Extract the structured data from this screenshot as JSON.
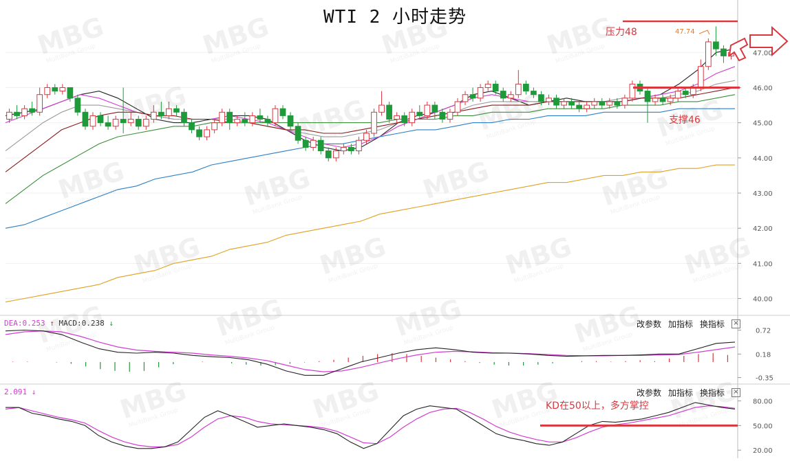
{
  "title": "WTI 2 小时走势",
  "annotations": {
    "resistance": "压力48",
    "support": "支撑46",
    "kd_note": "KD在50以上，多方掌控",
    "peak": "47.74"
  },
  "watermark": {
    "logo": "MBG",
    "sub": "MultiBank Group"
  },
  "macd_header": {
    "dea": "DEA:0.253",
    "macd": "MACD:0.238",
    "dea_arrow": "↑",
    "macd_arrow": "↓"
  },
  "kd_header": {
    "value": "2.091",
    "arrow": "↓"
  },
  "toolbar": {
    "modify": "改参数",
    "add": "加指标",
    "switch": "换指标",
    "close": "×"
  },
  "colors": {
    "up": "#d9363e",
    "down": "#1f9a3a",
    "annotation": "#d9363e",
    "ma_black": "#222222",
    "ma_magenta": "#d23cd2",
    "ma_grey": "#9a9a9a",
    "ma_darkred": "#8b1a1a",
    "ma_green": "#3a8f3a",
    "ma_blue": "#2a7fc8",
    "ma_orange": "#e0a020"
  },
  "chart_data": [
    {
      "type": "candlestick",
      "title": "WTI 2 小时走势",
      "ylim": [
        39.6,
        48.1
      ],
      "y_ticks": [
        "40.00",
        "41.00",
        "42.00",
        "43.00",
        "44.00",
        "45.00",
        "46.00",
        "47.00"
      ],
      "horizontal_levels": [
        {
          "label": "压力48",
          "value": 48.0
        },
        {
          "label": "支撑46",
          "value": 46.0
        }
      ],
      "peak_label": {
        "text": "47.74",
        "value": 47.74
      },
      "candles": [
        [
          45.1,
          45.3,
          45.0,
          45.4
        ],
        [
          45.3,
          45.2,
          45.1,
          45.5
        ],
        [
          45.2,
          45.4,
          45.1,
          45.5
        ],
        [
          45.4,
          45.3,
          45.2,
          45.6
        ],
        [
          45.3,
          45.8,
          45.2,
          46.0
        ],
        [
          45.8,
          46.0,
          45.7,
          46.1
        ],
        [
          46.0,
          45.9,
          45.8,
          46.1
        ],
        [
          45.9,
          46.0,
          45.8,
          46.1
        ],
        [
          46.0,
          45.7,
          45.6,
          46.0
        ],
        [
          45.7,
          45.3,
          45.2,
          45.8
        ],
        [
          45.3,
          44.9,
          44.8,
          45.4
        ],
        [
          44.9,
          45.2,
          44.8,
          45.3
        ],
        [
          45.2,
          45.0,
          44.9,
          45.3
        ],
        [
          45.0,
          44.9,
          44.8,
          45.2
        ],
        [
          44.9,
          45.1,
          44.8,
          45.2
        ],
        [
          45.1,
          45.0,
          44.7,
          46.0
        ],
        [
          45.0,
          45.1,
          44.9,
          45.3
        ],
        [
          45.1,
          44.9,
          44.8,
          45.2
        ],
        [
          44.9,
          45.1,
          44.8,
          45.2
        ],
        [
          45.1,
          45.3,
          45.0,
          45.5
        ],
        [
          45.3,
          45.2,
          45.1,
          45.6
        ],
        [
          45.2,
          45.4,
          45.1,
          45.6
        ],
        [
          45.4,
          45.3,
          45.2,
          45.5
        ],
        [
          45.3,
          45.0,
          44.9,
          45.4
        ],
        [
          45.0,
          44.8,
          44.7,
          45.1
        ],
        [
          44.8,
          44.6,
          44.5,
          44.9
        ],
        [
          44.6,
          44.8,
          44.5,
          44.9
        ],
        [
          44.8,
          45.0,
          44.7,
          45.1
        ],
        [
          45.0,
          45.3,
          44.9,
          45.4
        ],
        [
          45.3,
          45.0,
          44.8,
          45.4
        ],
        [
          45.0,
          45.1,
          44.9,
          45.2
        ],
        [
          45.1,
          45.0,
          44.9,
          45.3
        ],
        [
          45.0,
          45.2,
          44.9,
          45.3
        ],
        [
          45.2,
          45.1,
          45.0,
          45.4
        ],
        [
          45.1,
          45.0,
          44.9,
          45.2
        ],
        [
          45.0,
          45.4,
          44.9,
          45.5
        ],
        [
          45.4,
          45.2,
          45.1,
          45.5
        ],
        [
          45.2,
          44.9,
          44.8,
          45.3
        ],
        [
          44.9,
          44.5,
          44.4,
          45.0
        ],
        [
          44.5,
          44.3,
          44.2,
          44.6
        ],
        [
          44.3,
          44.5,
          44.2,
          44.6
        ],
        [
          44.5,
          44.2,
          44.1,
          44.6
        ],
        [
          44.2,
          44.0,
          43.9,
          44.3
        ],
        [
          44.0,
          44.2,
          43.9,
          44.3
        ],
        [
          44.2,
          44.3,
          44.1,
          44.4
        ],
        [
          44.3,
          44.2,
          44.1,
          44.4
        ],
        [
          44.2,
          44.5,
          44.1,
          44.6
        ],
        [
          44.5,
          44.7,
          44.4,
          44.8
        ],
        [
          44.7,
          45.3,
          44.6,
          45.4
        ],
        [
          45.3,
          45.5,
          45.2,
          45.9
        ],
        [
          45.5,
          45.1,
          45.0,
          45.6
        ],
        [
          45.1,
          45.2,
          45.0,
          45.3
        ],
        [
          45.2,
          45.0,
          44.9,
          45.3
        ],
        [
          45.0,
          45.3,
          44.9,
          45.4
        ],
        [
          45.3,
          45.2,
          45.1,
          45.5
        ],
        [
          45.2,
          45.5,
          45.1,
          45.6
        ],
        [
          45.5,
          45.3,
          45.1,
          45.6
        ],
        [
          45.3,
          45.1,
          45.0,
          45.4
        ],
        [
          45.1,
          45.3,
          45.0,
          45.4
        ],
        [
          45.3,
          45.6,
          45.2,
          45.7
        ],
        [
          45.6,
          45.8,
          45.5,
          45.9
        ],
        [
          45.8,
          45.7,
          45.6,
          46.0
        ],
        [
          45.7,
          46.0,
          45.6,
          46.1
        ],
        [
          46.0,
          46.1,
          45.9,
          46.2
        ],
        [
          46.1,
          45.9,
          45.8,
          46.2
        ],
        [
          45.9,
          45.7,
          45.6,
          46.0
        ],
        [
          45.7,
          45.8,
          45.6,
          45.9
        ],
        [
          45.8,
          46.1,
          45.7,
          46.5
        ],
        [
          46.1,
          45.9,
          45.8,
          46.2
        ],
        [
          45.9,
          45.8,
          45.7,
          46.0
        ],
        [
          45.8,
          45.6,
          45.5,
          45.9
        ],
        [
          45.6,
          45.7,
          45.5,
          45.8
        ],
        [
          45.7,
          45.5,
          45.4,
          45.8
        ],
        [
          45.5,
          45.6,
          45.4,
          45.7
        ],
        [
          45.6,
          45.5,
          45.4,
          45.7
        ],
        [
          45.5,
          45.4,
          45.3,
          45.6
        ],
        [
          45.4,
          45.5,
          45.3,
          45.6
        ],
        [
          45.5,
          45.6,
          45.4,
          45.7
        ],
        [
          45.6,
          45.5,
          45.4,
          45.7
        ],
        [
          45.5,
          45.6,
          45.4,
          45.7
        ],
        [
          45.6,
          45.5,
          45.4,
          45.7
        ],
        [
          45.5,
          45.7,
          45.4,
          45.8
        ],
        [
          45.7,
          46.1,
          45.6,
          46.2
        ],
        [
          46.1,
          45.9,
          45.8,
          46.2
        ],
        [
          45.9,
          45.6,
          45.0,
          46.0
        ],
        [
          45.6,
          45.7,
          45.5,
          45.8
        ],
        [
          45.7,
          45.6,
          45.5,
          45.8
        ],
        [
          45.6,
          45.7,
          45.5,
          45.8
        ],
        [
          45.7,
          45.9,
          45.6,
          46.0
        ],
        [
          45.9,
          45.8,
          45.7,
          46.0
        ],
        [
          45.8,
          46.0,
          45.7,
          46.1
        ],
        [
          46.0,
          46.6,
          45.9,
          46.8
        ],
        [
          46.6,
          47.3,
          46.5,
          47.4
        ],
        [
          47.3,
          47.1,
          46.9,
          47.74
        ],
        [
          47.1,
          46.9,
          46.7,
          47.2
        ],
        [
          46.9,
          47.0,
          46.8,
          47.1
        ]
      ],
      "moving_averages": [
        {
          "color": "#222222",
          "values": [
            45.2,
            45.3,
            45.4,
            45.6,
            45.8,
            45.9,
            45.7,
            45.4,
            45.1,
            45.0,
            45.0,
            45.1,
            45.2,
            45.2,
            45.1,
            44.8,
            44.5,
            44.3,
            44.2,
            44.3,
            44.6,
            45.0,
            45.2,
            45.3,
            45.5,
            45.8,
            45.9,
            45.7,
            45.5,
            45.6,
            45.7,
            45.6,
            45.6,
            45.6,
            45.7,
            45.8,
            46.1,
            46.5,
            47.0,
            47.1
          ]
        },
        {
          "color": "#d23cd2",
          "values": [
            45.0,
            45.2,
            45.4,
            45.6,
            45.8,
            45.7,
            45.5,
            45.3,
            45.2,
            45.1,
            45.1,
            45.1,
            45.2,
            45.1,
            45.0,
            44.8,
            44.6,
            44.4,
            44.3,
            44.4,
            44.6,
            44.9,
            45.1,
            45.3,
            45.5,
            45.7,
            45.8,
            45.7,
            45.6,
            45.6,
            45.6,
            45.6,
            45.6,
            45.6,
            45.7,
            45.8,
            45.9,
            46.1,
            46.4,
            46.6
          ]
        },
        {
          "color": "#9a9a9a",
          "values": [
            44.2,
            44.6,
            45.0,
            45.3,
            45.5,
            45.5,
            45.4,
            45.3,
            45.2,
            45.1,
            45.1,
            45.1,
            45.1,
            45.0,
            44.9,
            44.8,
            44.7,
            44.6,
            44.6,
            44.7,
            44.8,
            45.0,
            45.1,
            45.2,
            45.3,
            45.5,
            45.6,
            45.6,
            45.6,
            45.6,
            45.6,
            45.6,
            45.6,
            45.7,
            45.7,
            45.7,
            45.8,
            45.9,
            46.1,
            46.2
          ]
        },
        {
          "color": "#8b1a1a",
          "values": [
            43.6,
            44.0,
            44.4,
            44.8,
            45.0,
            45.2,
            45.3,
            45.3,
            45.2,
            45.2,
            45.1,
            45.1,
            45.0,
            45.0,
            44.9,
            44.8,
            44.8,
            44.7,
            44.7,
            44.8,
            44.9,
            45.0,
            45.1,
            45.2,
            45.3,
            45.4,
            45.5,
            45.5,
            45.5,
            45.6,
            45.6,
            45.6,
            45.6,
            45.6,
            45.7,
            45.7,
            45.7,
            45.8,
            45.9,
            46.0
          ]
        },
        {
          "color": "#3a8f3a",
          "values": [
            42.7,
            43.1,
            43.5,
            43.8,
            44.1,
            44.4,
            44.6,
            44.7,
            44.8,
            44.9,
            44.9,
            45.0,
            45.0,
            45.0,
            45.0,
            45.0,
            45.0,
            45.0,
            45.0,
            45.0,
            45.0,
            45.1,
            45.1,
            45.1,
            45.2,
            45.2,
            45.3,
            45.3,
            45.3,
            45.4,
            45.4,
            45.4,
            45.4,
            45.5,
            45.5,
            45.5,
            45.6,
            45.6,
            45.7,
            45.8
          ]
        },
        {
          "color": "#2a7fc8",
          "values": [
            42.0,
            42.1,
            42.3,
            42.5,
            42.7,
            42.9,
            43.1,
            43.2,
            43.4,
            43.5,
            43.6,
            43.8,
            43.9,
            44.0,
            44.1,
            44.2,
            44.3,
            44.4,
            44.4,
            44.5,
            44.6,
            44.7,
            44.8,
            44.8,
            44.9,
            45.0,
            45.0,
            45.1,
            45.1,
            45.2,
            45.2,
            45.2,
            45.3,
            45.3,
            45.3,
            45.3,
            45.4,
            45.4,
            45.4,
            45.4
          ]
        },
        {
          "color": "#e0a020",
          "values": [
            39.9,
            40.0,
            40.1,
            40.2,
            40.3,
            40.4,
            40.6,
            40.7,
            40.8,
            41.0,
            41.1,
            41.2,
            41.4,
            41.5,
            41.6,
            41.8,
            41.9,
            42.0,
            42.1,
            42.2,
            42.4,
            42.5,
            42.6,
            42.7,
            42.8,
            42.9,
            43.0,
            43.1,
            43.2,
            43.3,
            43.3,
            43.4,
            43.5,
            43.5,
            43.6,
            43.6,
            43.7,
            43.7,
            43.8,
            43.8
          ]
        }
      ]
    },
    {
      "type": "macd",
      "ylim": [
        -0.45,
        0.82
      ],
      "y_ticks": [
        "0.72",
        "0.18",
        "-0.35"
      ],
      "dif": [
        0.7,
        0.72,
        0.7,
        0.62,
        0.45,
        0.3,
        0.22,
        0.2,
        0.22,
        0.2,
        0.15,
        0.12,
        0.1,
        0.05,
        -0.05,
        -0.2,
        -0.3,
        -0.3,
        -0.15,
        0.0,
        0.1,
        0.2,
        0.28,
        0.32,
        0.28,
        0.22,
        0.2,
        0.2,
        0.18,
        0.15,
        0.13,
        0.14,
        0.15,
        0.15,
        0.16,
        0.18,
        0.18,
        0.3,
        0.42,
        0.45
      ],
      "dea": [
        0.62,
        0.68,
        0.7,
        0.68,
        0.58,
        0.45,
        0.34,
        0.27,
        0.24,
        0.22,
        0.2,
        0.16,
        0.13,
        0.09,
        0.03,
        -0.07,
        -0.17,
        -0.22,
        -0.2,
        -0.12,
        -0.02,
        0.08,
        0.16,
        0.22,
        0.24,
        0.23,
        0.21,
        0.2,
        0.19,
        0.17,
        0.15,
        0.14,
        0.14,
        0.15,
        0.15,
        0.16,
        0.17,
        0.22,
        0.28,
        0.34
      ],
      "histogram": [
        0.01,
        0.01,
        0.0,
        -0.01,
        -0.04,
        -0.1,
        -0.16,
        -0.2,
        -0.22,
        -0.2,
        -0.12,
        -0.05,
        0.0,
        0.01,
        0.0,
        -0.03,
        -0.06,
        -0.08,
        -0.07,
        -0.04,
        -0.01,
        0.02,
        0.05,
        0.1,
        0.14,
        0.18,
        0.2,
        0.18,
        0.14,
        0.1,
        0.06,
        0.02,
        -0.02,
        -0.06,
        -0.08,
        -0.08,
        -0.06,
        -0.03,
        0.0,
        0.02,
        0.02,
        0.01,
        0.02,
        0.04,
        0.02,
        0.08,
        0.14,
        0.18,
        0.2,
        0.16
      ]
    },
    {
      "type": "line",
      "name": "KD",
      "ylim": [
        16,
        88
      ],
      "y_ticks": [
        "80.00",
        "50.00",
        "20.00"
      ],
      "horizontal_level": 50,
      "k": [
        72,
        72,
        65,
        62,
        58,
        55,
        50,
        38,
        30,
        25,
        22,
        22,
        24,
        30,
        45,
        60,
        68,
        62,
        55,
        48,
        50,
        52,
        50,
        48,
        45,
        40,
        30,
        22,
        28,
        45,
        62,
        70,
        74,
        72,
        70,
        60,
        50,
        40,
        35,
        32,
        28,
        26,
        30,
        40,
        50,
        55,
        54,
        56,
        58,
        62,
        66,
        72,
        78,
        75,
        72,
        70
      ],
      "d": [
        70,
        72,
        68,
        64,
        60,
        57,
        53,
        44,
        36,
        30,
        26,
        24,
        24,
        27,
        36,
        48,
        58,
        62,
        60,
        55,
        52,
        51,
        50,
        49,
        47,
        43,
        36,
        29,
        28,
        36,
        48,
        58,
        66,
        70,
        71,
        66,
        58,
        49,
        42,
        37,
        33,
        30,
        30,
        35,
        42,
        48,
        51,
        53,
        56,
        59,
        62,
        67,
        72,
        74,
        73,
        71
      ]
    }
  ]
}
